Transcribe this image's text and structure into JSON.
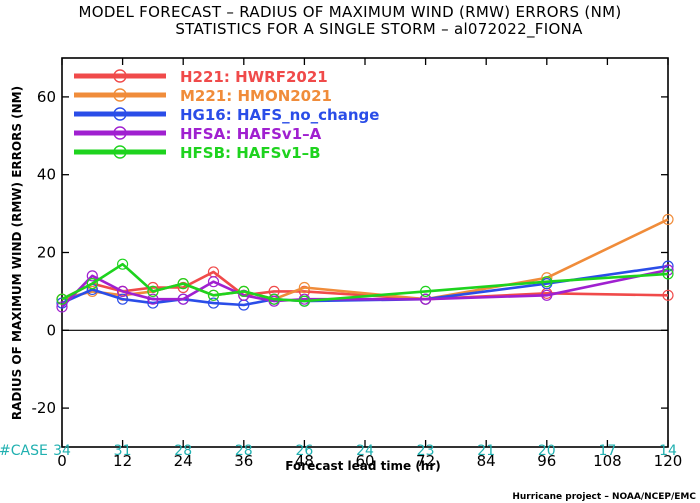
{
  "title_line1": "MODEL FORECAST – RADIUS OF MAXIMUM WIND (RMW) ERRORS (NM)",
  "title_line2": "STATISTICS FOR A SINGLE STORM – al072022_FIONA",
  "footer_credit": "Hurricane project – NOAA/NCEP/EMC",
  "case_label": "#CASE",
  "case_counts": [
    "34",
    "31",
    "28",
    "28",
    "26",
    "24",
    "23",
    "21",
    "20",
    "17",
    "14"
  ],
  "colors": {
    "H221": "#f04a4a",
    "M221": "#f08c3a",
    "HG16": "#2a4de8",
    "HFSA": "#a020d0",
    "HFSB": "#1ed31e",
    "case": "#20b0b0"
  },
  "chart_data": {
    "type": "line",
    "title": "MODEL FORECAST – RADIUS OF MAXIMUM WIND (RMW) ERRORS (NM)",
    "subtitle": "STATISTICS FOR A SINGLE STORM – al072022_FIONA",
    "xlabel": "Forecast lead time (hr)",
    "ylabel": "RADIUS OF MAXIMUM WIND (RMW) ERRORS (NM)",
    "xlim": [
      0,
      120
    ],
    "ylim": [
      -30,
      70
    ],
    "xticks": [
      0,
      12,
      24,
      36,
      48,
      60,
      72,
      84,
      96,
      108,
      120
    ],
    "yticks": [
      -20,
      0,
      20,
      40,
      60
    ],
    "legend_position": "top-left",
    "grid": false,
    "x": [
      0,
      6,
      12,
      18,
      24,
      30,
      36,
      42,
      48,
      72,
      96,
      120
    ],
    "series": [
      {
        "key": "H221",
        "name": "H221:  HWRF2021",
        "values": [
          8,
          12,
          10,
          11,
          11,
          15,
          9,
          10,
          10,
          8,
          9.5,
          9
        ]
      },
      {
        "key": "M221",
        "name": "M221:  HMON2021",
        "values": [
          8,
          10,
          9,
          10,
          12,
          9,
          10,
          8,
          11,
          8,
          13.5,
          28.5
        ]
      },
      {
        "key": "HG16",
        "name": "HG16:  HAFS_no_change",
        "values": [
          7,
          10.5,
          8,
          7,
          8,
          7,
          6.5,
          8,
          7.5,
          8,
          12,
          16.5
        ]
      },
      {
        "key": "HFSA",
        "name": "HFSA:  HAFSv1–A",
        "values": [
          6,
          14,
          10,
          8,
          8,
          12.5,
          9,
          7.5,
          8,
          8,
          9,
          15.5
        ]
      },
      {
        "key": "HFSB",
        "name": "HFSB:  HAFSv1–B",
        "values": [
          8,
          12,
          17,
          10,
          12,
          9,
          10,
          8,
          7.5,
          10,
          12.5,
          14.5
        ]
      }
    ]
  }
}
